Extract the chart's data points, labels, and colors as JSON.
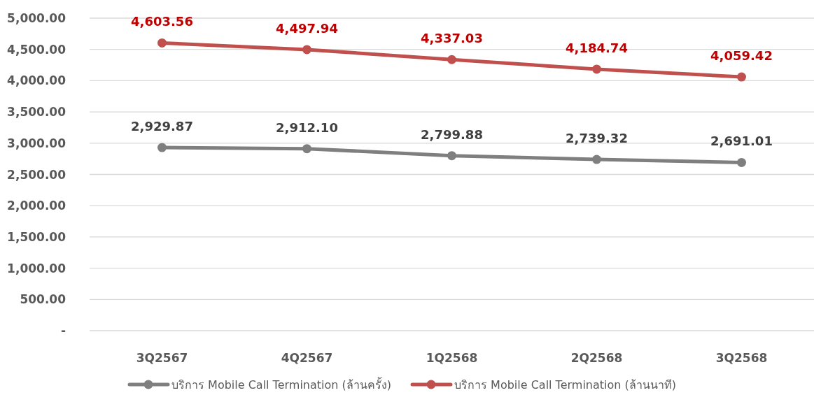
{
  "chart_data": {
    "type": "line",
    "categories": [
      "3Q2567",
      "4Q2567",
      "1Q2568",
      "2Q2568",
      "3Q2568"
    ],
    "series": [
      {
        "name": "บริการ Mobile Call Termination (ล้านครั้ง)",
        "color": "#7f7f7f",
        "values": [
          2929.87,
          2912.1,
          2799.88,
          2739.32,
          2691.01
        ],
        "value_labels": [
          "2,929.87",
          "2,912.10",
          "2,799.88",
          "2,739.32",
          "2,691.01"
        ]
      },
      {
        "name": "บริการ Mobile Call Termination (ล้านนาที)",
        "color": "#c0504d",
        "values": [
          4603.56,
          4497.94,
          4337.03,
          4184.74,
          4059.42
        ],
        "value_labels": [
          "4,603.56",
          "4,497.94",
          "4,337.03",
          "4,184.74",
          "4,059.42"
        ]
      }
    ],
    "ylim": [
      0,
      5000
    ],
    "yticks": [
      {
        "value": 0,
        "label": "-"
      },
      {
        "value": 500,
        "label": "500.00"
      },
      {
        "value": 1000,
        "label": "1,000.00"
      },
      {
        "value": 1500,
        "label": "1,500.00"
      },
      {
        "value": 2000,
        "label": "2,000.00"
      },
      {
        "value": 2500,
        "label": "2,500.00"
      },
      {
        "value": 3000,
        "label": "3,000.00"
      },
      {
        "value": 3500,
        "label": "3,500.00"
      },
      {
        "value": 4000,
        "label": "4,000.00"
      },
      {
        "value": 4500,
        "label": "4,500.00"
      },
      {
        "value": 5000,
        "label": "5,000.00"
      }
    ],
    "grid": "y",
    "legend": "bottom",
    "marker": "circle",
    "line_style": "solid"
  }
}
